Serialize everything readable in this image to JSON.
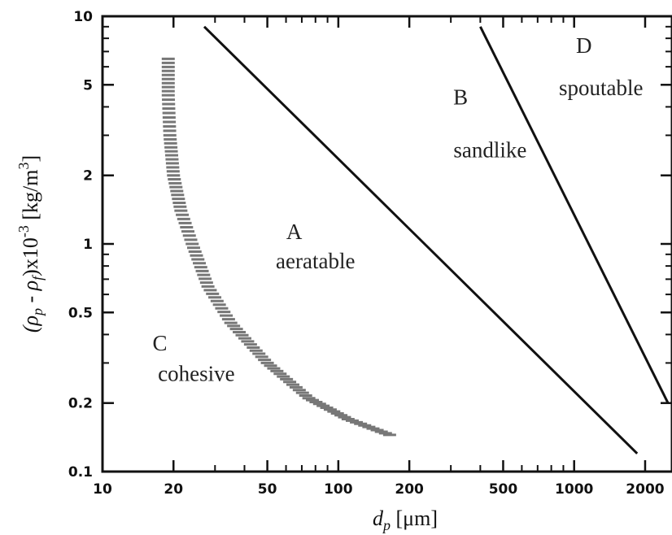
{
  "chart_data": {
    "type": "line",
    "title": "",
    "xscale": "log",
    "yscale": "log",
    "xlim": [
      10,
      2600
    ],
    "ylim": [
      0.1,
      10
    ],
    "grid": false,
    "xlabel": {
      "main": "d",
      "sub": "p",
      "unit": " [μm]"
    },
    "ylabel": {
      "open": "(ρ",
      "sub1": "p",
      "mid": " - ρ",
      "sub2": "f",
      "close": ")x10",
      "sup1": "-3",
      "unit": " [kg/m",
      "sup2": "3",
      "end": "]"
    },
    "x_ticks": [
      {
        "v": 10,
        "label": "10"
      },
      {
        "v": 20,
        "label": "20"
      },
      {
        "v": 50,
        "label": "50"
      },
      {
        "v": 100,
        "label": "100"
      },
      {
        "v": 200,
        "label": "200"
      },
      {
        "v": 500,
        "label": "500"
      },
      {
        "v": 1000,
        "label": "1000"
      },
      {
        "v": 2000,
        "label": "2000"
      }
    ],
    "y_ticks": [
      {
        "v": 0.1,
        "label": "0.1"
      },
      {
        "v": 0.2,
        "label": "0.2"
      },
      {
        "v": 0.5,
        "label": "0.5"
      },
      {
        "v": 1,
        "label": "1"
      },
      {
        "v": 2,
        "label": "2"
      },
      {
        "v": 5,
        "label": "5"
      },
      {
        "v": 10,
        "label": "10"
      }
    ],
    "x_minor": [
      30,
      40,
      60,
      70,
      80,
      90,
      300,
      400,
      600,
      700,
      800,
      900
    ],
    "y_minor": [
      0.3,
      0.4,
      0.6,
      0.7,
      0.8,
      0.9,
      3,
      4,
      6,
      7,
      8,
      9
    ],
    "series": [
      {
        "id": "ca-boundary",
        "style": "hatched",
        "points": [
          [
            19,
            6.5
          ],
          [
            19,
            4.5
          ],
          [
            19.3,
            3
          ],
          [
            20,
            2
          ],
          [
            21.5,
            1.4
          ],
          [
            24,
            1
          ],
          [
            28,
            0.65
          ],
          [
            35,
            0.45
          ],
          [
            50,
            0.3
          ],
          [
            75,
            0.21
          ],
          [
            110,
            0.17
          ],
          [
            165,
            0.145
          ]
        ]
      },
      {
        "id": "ab-boundary",
        "style": "solid",
        "points": [
          [
            27,
            9
          ],
          [
            1850,
            0.12
          ]
        ]
      },
      {
        "id": "bd-boundary",
        "style": "solid",
        "points": [
          [
            400,
            9
          ],
          [
            2500,
            0.2
          ]
        ]
      }
    ],
    "regions": [
      {
        "letter": "A",
        "name": "aeratable",
        "letter_at": [
          65,
          1.05
        ],
        "name_at": [
          80,
          0.78
        ]
      },
      {
        "letter": "B",
        "name": "sandlike",
        "letter_at": [
          330,
          4.1
        ],
        "name_at": [
          440,
          2.4
        ]
      },
      {
        "letter": "C",
        "name": "cohesive",
        "letter_at": [
          17.5,
          0.34
        ],
        "name_at": [
          25,
          0.25
        ]
      },
      {
        "letter": "D",
        "name": "spoutable",
        "letter_at": [
          1100,
          6.9
        ],
        "name_at": [
          1300,
          4.5
        ]
      }
    ]
  }
}
